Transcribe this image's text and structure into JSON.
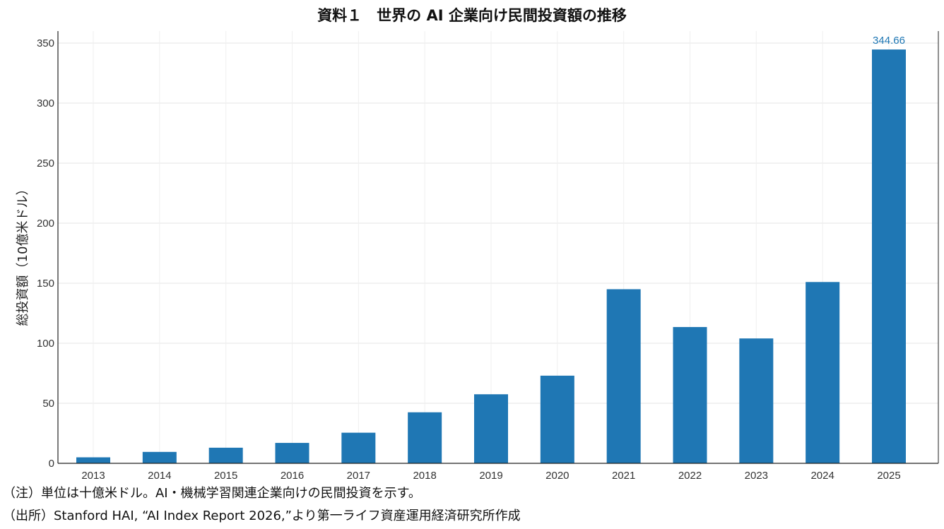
{
  "title": "資料１　世界の AI 企業向け民間投資額の推移",
  "chart_data": {
    "type": "bar",
    "title": "資料１　世界の AI 企業向け民間投資額の推移",
    "xlabel": "",
    "ylabel": "総投資額（10億米ドル）",
    "categories": [
      "2013",
      "2014",
      "2015",
      "2016",
      "2017",
      "2018",
      "2019",
      "2020",
      "2021",
      "2022",
      "2023",
      "2024",
      "2025"
    ],
    "values": [
      5,
      9.5,
      13,
      17,
      25.5,
      42.5,
      57.5,
      73,
      145,
      113.5,
      104,
      151,
      344.66
    ],
    "ylim": [
      0,
      360
    ],
    "yticks": [
      0,
      50,
      100,
      150,
      200,
      250,
      300,
      350
    ],
    "grid": true,
    "bar_color": "#1f77b4",
    "data_labels": [
      {
        "category": "2025",
        "text": "344.66"
      }
    ],
    "data_label_color": "#1f77b4"
  },
  "notes": {
    "note": "（注）単位は十億米ドル。AI・機械学習関連企業向けの民間投資を示す。",
    "source": "（出所）Stanford HAI, “AI Index Report 2026,”より第一ライフ資産運用経済研究所作成"
  }
}
